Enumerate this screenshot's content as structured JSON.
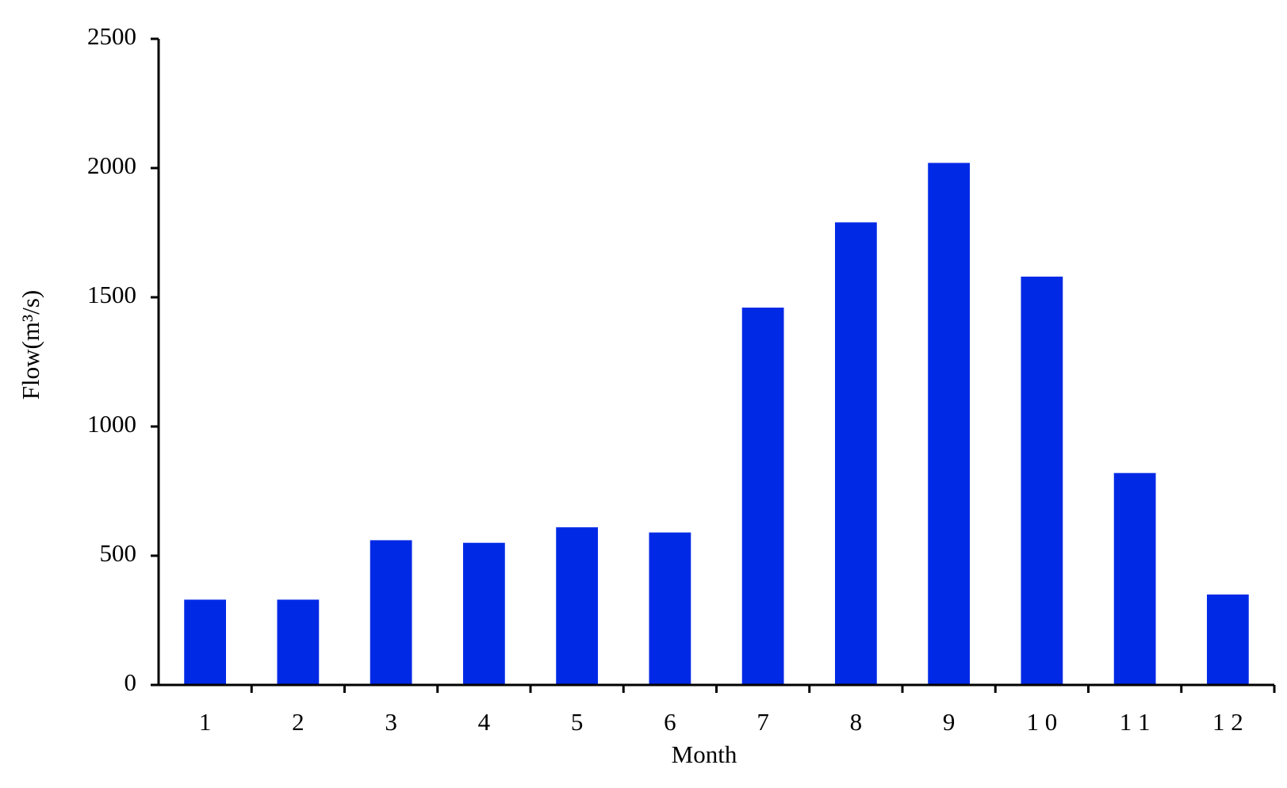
{
  "chart_data": {
    "type": "bar",
    "x_label": "Month",
    "y_label": "Flow(m³/s)",
    "categories": [
      "1",
      "2",
      "3",
      "4",
      "5",
      "6",
      "7",
      "8",
      "9",
      "1 0",
      "1 1",
      "1 2"
    ],
    "values": [
      330,
      330,
      560,
      550,
      610,
      590,
      1460,
      1790,
      2020,
      1580,
      820,
      350
    ],
    "color": "#0029e6",
    "ylim": [
      0,
      2500
    ],
    "yticks": [
      0,
      500,
      1000,
      1500,
      2000,
      2500
    ],
    "grid": false
  }
}
